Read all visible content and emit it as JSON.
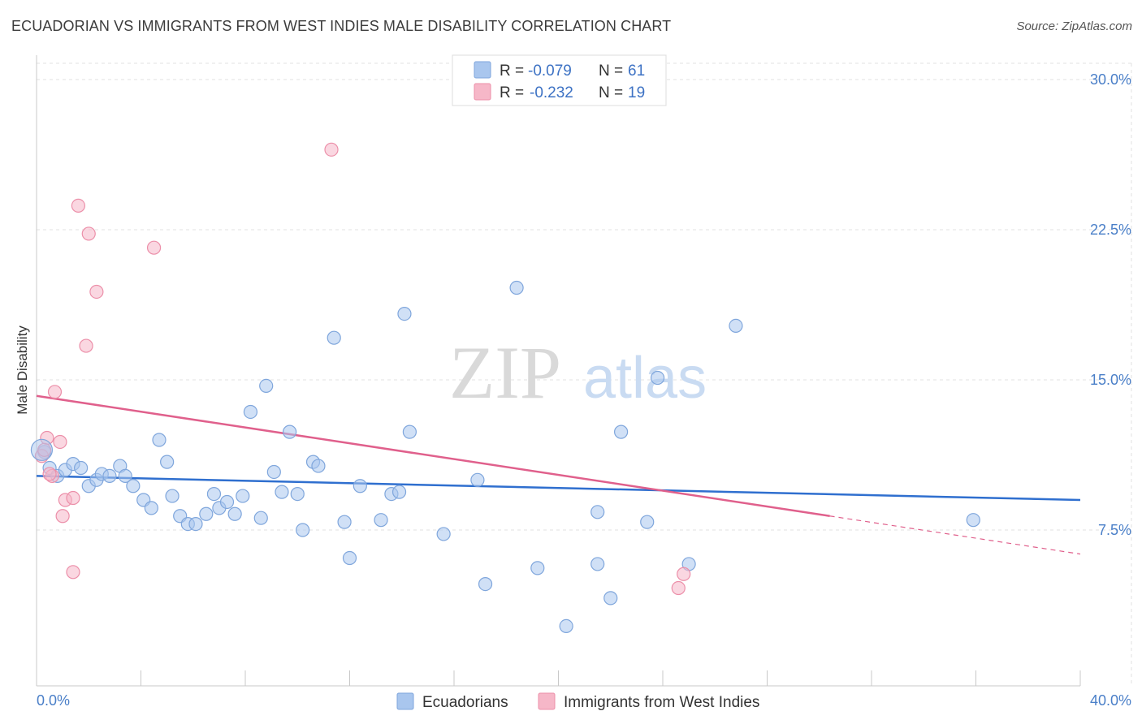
{
  "title": "ECUADORIAN VS IMMIGRANTS FROM WEST INDIES MALE DISABILITY CORRELATION CHART",
  "source": "Source: ZipAtlas.com",
  "watermark": {
    "zip": "ZIP",
    "atlas": "atlas"
  },
  "legend": {
    "rows": [
      {
        "r_label": "R =",
        "r_value": "-0.079",
        "n_label": "N =",
        "n_value": "61",
        "color": "#a9c6ee"
      },
      {
        "r_label": "R =",
        "r_value": "-0.232",
        "n_label": "N =",
        "n_value": "19",
        "color": "#f6b7c8"
      }
    ]
  },
  "bottom_legend": [
    {
      "label": "Ecuadorians",
      "color": "#a9c6ee"
    },
    {
      "label": "Immigrants from West Indies",
      "color": "#f6b7c8"
    }
  ],
  "chart_data": {
    "type": "scatter",
    "xlabel": "",
    "ylabel": "Male Disability",
    "x_tick_labels": [
      "0.0%",
      "40.0%"
    ],
    "y_tick_labels": [
      "7.5%",
      "15.0%",
      "22.5%",
      "30.0%"
    ],
    "y_ticks": [
      7.5,
      15.0,
      22.5,
      30.0
    ],
    "xlim": [
      0,
      40
    ],
    "ylim": [
      0,
      31
    ],
    "grid": true,
    "series": [
      {
        "name": "Ecuadorians",
        "color": "#a9c6ee",
        "stroke": "#7fa6dc",
        "trend": {
          "x": [
            0,
            40
          ],
          "y": [
            10.2,
            9.0
          ],
          "color": "#2f6fcf"
        },
        "points": [
          [
            0.3,
            11.4
          ],
          [
            0.5,
            10.6
          ],
          [
            0.8,
            10.2
          ],
          [
            1.1,
            10.5
          ],
          [
            1.4,
            10.8
          ],
          [
            1.7,
            10.6
          ],
          [
            2.0,
            9.7
          ],
          [
            2.3,
            10.0
          ],
          [
            2.5,
            10.3
          ],
          [
            2.8,
            10.2
          ],
          [
            3.2,
            10.7
          ],
          [
            3.4,
            10.2
          ],
          [
            3.7,
            9.7
          ],
          [
            4.1,
            9.0
          ],
          [
            4.4,
            8.6
          ],
          [
            4.7,
            12.0
          ],
          [
            5.0,
            10.9
          ],
          [
            5.2,
            9.2
          ],
          [
            5.5,
            8.2
          ],
          [
            5.8,
            7.8
          ],
          [
            6.1,
            7.8
          ],
          [
            6.5,
            8.3
          ],
          [
            6.8,
            9.3
          ],
          [
            7.0,
            8.6
          ],
          [
            7.3,
            8.9
          ],
          [
            7.6,
            8.3
          ],
          [
            7.9,
            9.2
          ],
          [
            8.2,
            13.4
          ],
          [
            8.6,
            8.1
          ],
          [
            8.8,
            14.7
          ],
          [
            9.1,
            10.4
          ],
          [
            9.4,
            9.4
          ],
          [
            9.7,
            12.4
          ],
          [
            10.0,
            9.3
          ],
          [
            10.2,
            7.5
          ],
          [
            10.6,
            10.9
          ],
          [
            10.8,
            10.7
          ],
          [
            11.4,
            17.1
          ],
          [
            11.8,
            7.9
          ],
          [
            12.0,
            6.1
          ],
          [
            12.4,
            9.7
          ],
          [
            13.2,
            8.0
          ],
          [
            13.6,
            9.3
          ],
          [
            13.9,
            9.4
          ],
          [
            14.1,
            18.3
          ],
          [
            14.3,
            12.4
          ],
          [
            15.6,
            7.3
          ],
          [
            16.9,
            10.0
          ],
          [
            17.2,
            4.8
          ],
          [
            18.4,
            19.6
          ],
          [
            19.2,
            5.6
          ],
          [
            20.3,
            2.7
          ],
          [
            21.5,
            8.4
          ],
          [
            21.5,
            5.8
          ],
          [
            22.0,
            4.1
          ],
          [
            22.4,
            12.4
          ],
          [
            23.4,
            7.9
          ],
          [
            23.8,
            15.1
          ],
          [
            25.0,
            5.8
          ],
          [
            26.8,
            17.7
          ],
          [
            35.9,
            8.0
          ]
        ]
      },
      {
        "name": "Immigrants from West Indies",
        "color": "#f6b7c8",
        "stroke": "#ec8fa9",
        "trend": {
          "x": [
            0,
            30.4
          ],
          "y": [
            14.2,
            8.2
          ],
          "ext_x": [
            30.4,
            40
          ],
          "ext_y": [
            8.2,
            6.3
          ],
          "color": "#e0608c"
        },
        "points": [
          [
            0.2,
            11.2
          ],
          [
            0.4,
            12.1
          ],
          [
            0.6,
            10.2
          ],
          [
            0.7,
            14.4
          ],
          [
            0.9,
            11.9
          ],
          [
            1.0,
            8.2
          ],
          [
            1.1,
            9.0
          ],
          [
            1.4,
            5.4
          ],
          [
            1.4,
            9.1
          ],
          [
            1.6,
            23.7
          ],
          [
            1.9,
            16.7
          ],
          [
            2.0,
            22.3
          ],
          [
            2.3,
            19.4
          ],
          [
            4.5,
            21.6
          ],
          [
            11.3,
            26.5
          ],
          [
            24.8,
            5.3
          ],
          [
            24.6,
            4.6
          ],
          [
            0.3,
            11.5
          ],
          [
            0.5,
            10.3
          ]
        ]
      }
    ]
  }
}
